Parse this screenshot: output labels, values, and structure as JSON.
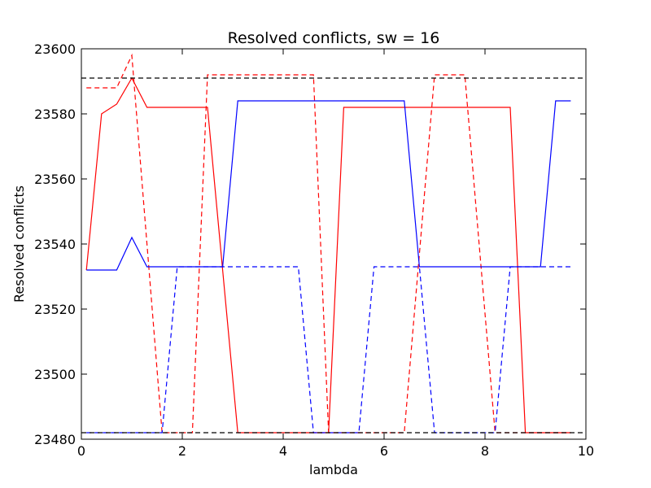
{
  "chart_data": {
    "type": "line",
    "title": "Resolved conflicts, sw = 16",
    "xlabel": "lambda",
    "ylabel": "Resolved conflicts",
    "xlim": [
      0,
      10
    ],
    "ylim": [
      23480,
      23600
    ],
    "xticks": [
      0,
      2,
      4,
      6,
      8,
      10
    ],
    "yticks": [
      23480,
      23500,
      23520,
      23540,
      23560,
      23580,
      23600
    ],
    "grid": false,
    "legend": "none",
    "series": [
      {
        "color": "#ff0000",
        "linestyle": "solid",
        "points": [
          [
            0.1,
            23532
          ],
          [
            0.4,
            23580
          ],
          [
            0.7,
            23583
          ],
          [
            1.0,
            23591
          ],
          [
            1.3,
            23582
          ],
          [
            2.5,
            23582
          ],
          [
            3.1,
            23482
          ],
          [
            4.9,
            23482
          ],
          [
            5.2,
            23582
          ],
          [
            8.5,
            23582
          ],
          [
            8.8,
            23482
          ],
          [
            9.7,
            23482
          ]
        ]
      },
      {
        "color": "#ff0000",
        "linestyle": "dashed",
        "points": [
          [
            0.1,
            23588
          ],
          [
            0.7,
            23588
          ],
          [
            1.0,
            23598
          ],
          [
            1.6,
            23482
          ],
          [
            2.2,
            23482
          ],
          [
            2.5,
            23592
          ],
          [
            4.6,
            23592
          ],
          [
            4.9,
            23482
          ],
          [
            6.4,
            23482
          ],
          [
            7.0,
            23592
          ],
          [
            7.6,
            23592
          ],
          [
            8.2,
            23482
          ],
          [
            9.7,
            23482
          ]
        ]
      },
      {
        "color": "#0000ff",
        "linestyle": "solid",
        "points": [
          [
            0.1,
            23532
          ],
          [
            0.7,
            23532
          ],
          [
            1.0,
            23542
          ],
          [
            1.3,
            23533
          ],
          [
            2.8,
            23533
          ],
          [
            3.1,
            23584
          ],
          [
            6.4,
            23584
          ],
          [
            6.7,
            23533
          ],
          [
            9.1,
            23533
          ],
          [
            9.4,
            23584
          ],
          [
            9.7,
            23584
          ]
        ]
      },
      {
        "color": "#0000ff",
        "linestyle": "dashed",
        "points": [
          [
            0.1,
            23482
          ],
          [
            1.6,
            23482
          ],
          [
            1.9,
            23533
          ],
          [
            4.3,
            23533
          ],
          [
            4.6,
            23482
          ],
          [
            5.5,
            23482
          ],
          [
            5.8,
            23533
          ],
          [
            6.7,
            23533
          ],
          [
            7.0,
            23482
          ],
          [
            8.2,
            23482
          ],
          [
            8.5,
            23533
          ],
          [
            9.7,
            23533
          ]
        ]
      },
      {
        "color": "#000000",
        "linestyle": "dashed",
        "points": [
          [
            0,
            23591
          ],
          [
            10,
            23591
          ]
        ]
      },
      {
        "color": "#000000",
        "linestyle": "dashed",
        "points": [
          [
            0,
            23482
          ],
          [
            10,
            23482
          ]
        ]
      }
    ]
  }
}
